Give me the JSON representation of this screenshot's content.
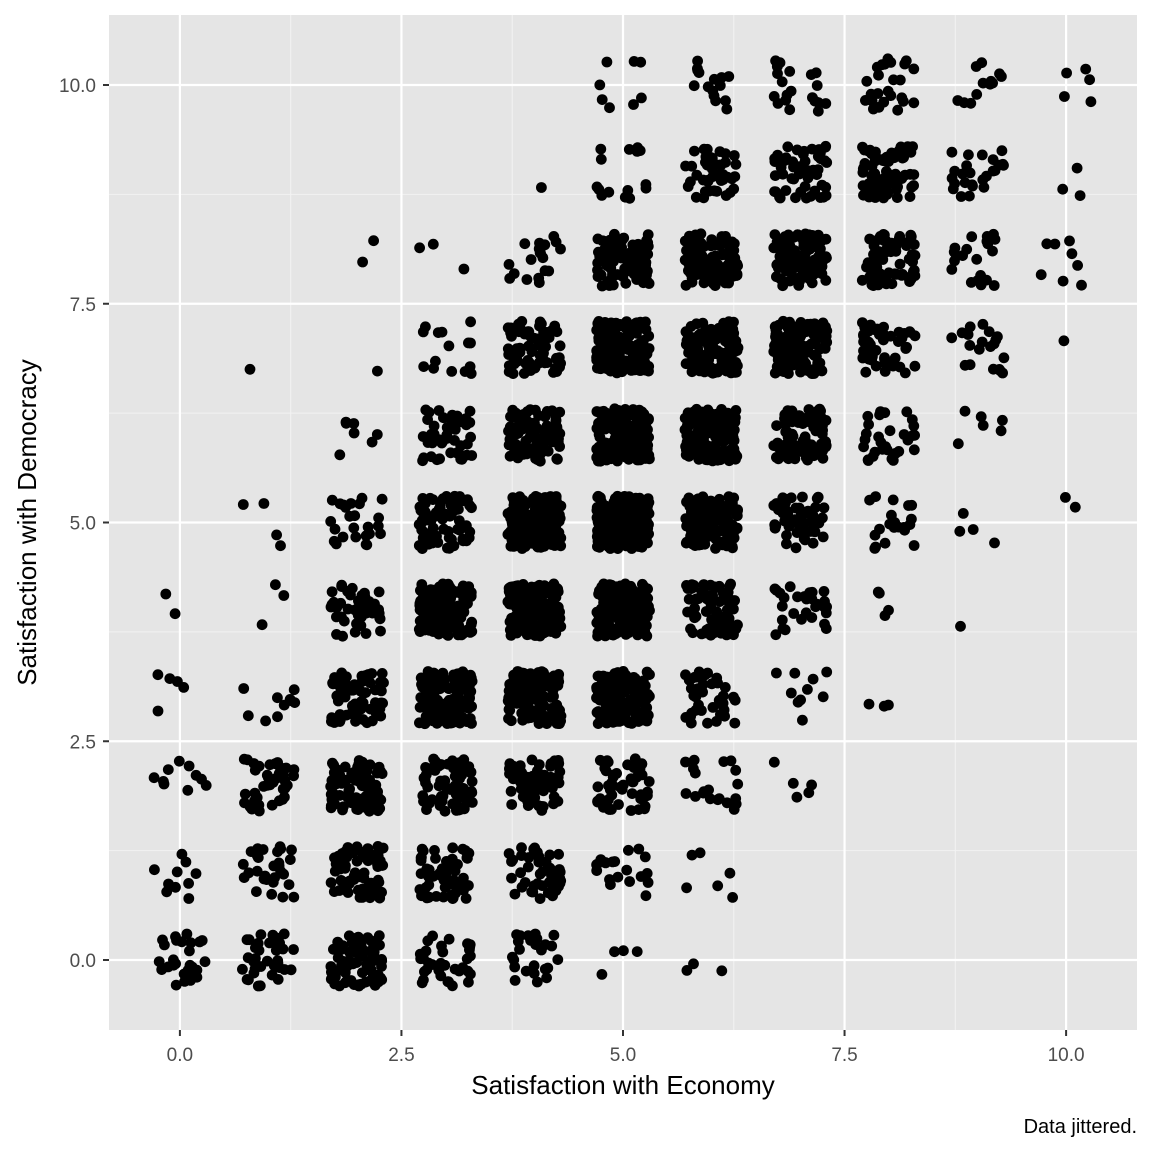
{
  "chart_data": {
    "type": "scatter",
    "xlabel": "Satisfaction with Economy",
    "ylabel": "Satisfaction with Democracy",
    "caption": "Data jittered.",
    "xlim": [
      -0.8,
      10.8
    ],
    "ylim": [
      -0.8,
      10.8
    ],
    "x_ticks": [
      "0.0",
      "2.5",
      "5.0",
      "7.5",
      "10.0"
    ],
    "y_ticks": [
      "0.0",
      "2.5",
      "5.0",
      "7.5",
      "10.0"
    ],
    "grid": true,
    "jitter": 0.3,
    "colors": {
      "panel": "#e5e5e5",
      "grid_major": "#ffffff",
      "grid_minor": "#f2f2f2",
      "point": "#000000"
    },
    "cells_note": "approximate number of jittered points at each integer (economy, democracy) pair",
    "cells": [
      [
        0,
        0,
        30
      ],
      [
        0,
        1,
        10
      ],
      [
        0,
        2,
        10
      ],
      [
        0,
        3,
        5
      ],
      [
        0,
        4,
        2
      ],
      [
        1,
        0,
        35
      ],
      [
        1,
        1,
        30
      ],
      [
        1,
        2,
        40
      ],
      [
        1,
        3,
        10
      ],
      [
        1,
        4,
        3
      ],
      [
        1,
        5,
        4
      ],
      [
        1,
        7,
        1
      ],
      [
        2,
        0,
        70
      ],
      [
        2,
        1,
        70
      ],
      [
        2,
        2,
        80
      ],
      [
        2,
        3,
        70
      ],
      [
        2,
        4,
        45
      ],
      [
        2,
        5,
        25
      ],
      [
        2,
        6,
        7
      ],
      [
        2,
        7,
        1
      ],
      [
        2,
        8,
        2
      ],
      [
        3,
        0,
        35
      ],
      [
        3,
        1,
        55
      ],
      [
        3,
        2,
        70
      ],
      [
        3,
        3,
        160
      ],
      [
        3,
        4,
        160
      ],
      [
        3,
        5,
        80
      ],
      [
        3,
        6,
        45
      ],
      [
        3,
        7,
        15
      ],
      [
        3,
        8,
        3
      ],
      [
        4,
        0,
        25
      ],
      [
        4,
        1,
        50
      ],
      [
        4,
        2,
        70
      ],
      [
        4,
        3,
        140
      ],
      [
        4,
        4,
        180
      ],
      [
        4,
        5,
        160
      ],
      [
        4,
        6,
        100
      ],
      [
        4,
        7,
        70
      ],
      [
        4,
        8,
        20
      ],
      [
        4,
        9,
        1
      ],
      [
        5,
        0,
        4
      ],
      [
        5,
        1,
        20
      ],
      [
        5,
        2,
        50
      ],
      [
        5,
        3,
        150
      ],
      [
        5,
        4,
        170
      ],
      [
        5,
        5,
        200
      ],
      [
        5,
        6,
        160
      ],
      [
        5,
        7,
        140
      ],
      [
        5,
        8,
        90
      ],
      [
        5,
        9,
        15
      ],
      [
        5,
        10,
        8
      ],
      [
        6,
        0,
        3
      ],
      [
        6,
        1,
        6
      ],
      [
        6,
        2,
        20
      ],
      [
        6,
        3,
        40
      ],
      [
        6,
        4,
        75
      ],
      [
        6,
        5,
        120
      ],
      [
        6,
        6,
        150
      ],
      [
        6,
        7,
        140
      ],
      [
        6,
        8,
        100
      ],
      [
        6,
        9,
        45
      ],
      [
        6,
        10,
        15
      ],
      [
        7,
        1,
        0
      ],
      [
        7,
        2,
        5
      ],
      [
        7,
        3,
        10
      ],
      [
        7,
        4,
        30
      ],
      [
        7,
        5,
        50
      ],
      [
        7,
        6,
        80
      ],
      [
        7,
        7,
        110
      ],
      [
        7,
        8,
        100
      ],
      [
        7,
        9,
        50
      ],
      [
        7,
        10,
        20
      ],
      [
        8,
        3,
        3
      ],
      [
        8,
        4,
        4
      ],
      [
        8,
        5,
        20
      ],
      [
        8,
        6,
        30
      ],
      [
        8,
        7,
        50
      ],
      [
        8,
        8,
        70
      ],
      [
        8,
        9,
        70
      ],
      [
        8,
        10,
        25
      ],
      [
        9,
        4,
        1
      ],
      [
        9,
        5,
        4
      ],
      [
        9,
        6,
        6
      ],
      [
        9,
        7,
        20
      ],
      [
        9,
        8,
        20
      ],
      [
        9,
        9,
        25
      ],
      [
        9,
        10,
        12
      ],
      [
        10,
        5,
        2
      ],
      [
        10,
        7,
        1
      ],
      [
        10,
        8,
        8
      ],
      [
        10,
        9,
        3
      ],
      [
        10,
        10,
        5
      ]
    ]
  }
}
